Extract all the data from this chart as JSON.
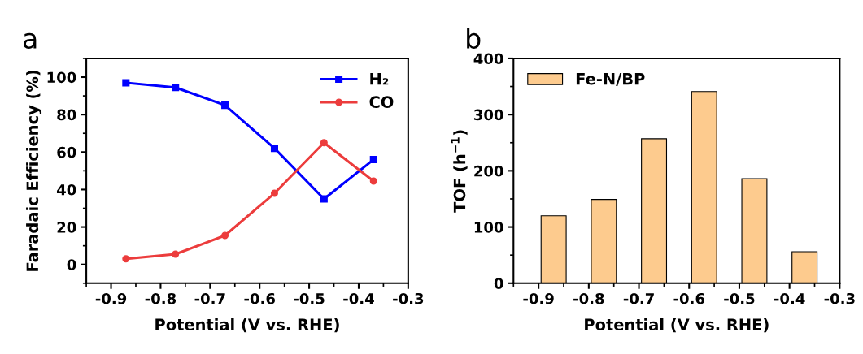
{
  "chart_data": [
    {
      "type": "line",
      "annotations": [
        "a"
      ],
      "xlabel": "Potential (V vs. RHE)",
      "ylabel": "Faradaic Efficiency (%)",
      "x": [
        -0.87,
        -0.77,
        -0.67,
        -0.57,
        -0.47,
        -0.37
      ],
      "series": [
        {
          "name": "H₂",
          "color": "#0000ff",
          "marker": "square",
          "values": [
            97,
            94.5,
            85,
            62,
            35,
            56
          ]
        },
        {
          "name": "CO",
          "color": "#ec3c3c",
          "marker": "circle",
          "values": [
            3,
            5.5,
            15.5,
            38,
            65,
            44.5
          ]
        }
      ],
      "xlim": [
        -0.95,
        -0.3
      ],
      "xticks": [
        -0.9,
        -0.8,
        -0.7,
        -0.6,
        -0.5,
        -0.4,
        -0.3
      ],
      "ylim": [
        -10,
        110
      ],
      "yticks": [
        0,
        20,
        40,
        60,
        80,
        100
      ],
      "legend": "top right",
      "grid": false,
      "line_style": "solid"
    },
    {
      "type": "bar",
      "annotations": [
        "b"
      ],
      "xlabel": "Potential (V vs. RHE)",
      "ylabel": "TOF (h$^{−1}$)",
      "x": [
        -0.87,
        -0.77,
        -0.67,
        -0.57,
        -0.47,
        -0.37
      ],
      "series": [
        {
          "name": "Fe-N/BP",
          "color": "#fdcb8e",
          "values": [
            120,
            149,
            257,
            341,
            186,
            56
          ]
        }
      ],
      "xlim": [
        -0.95,
        -0.3
      ],
      "xticks": [
        -0.9,
        -0.8,
        -0.7,
        -0.6,
        -0.5,
        -0.4,
        -0.3
      ],
      "ylim": [
        0,
        400
      ],
      "yticks": [
        0,
        100,
        200,
        300,
        400
      ],
      "legend": "top left",
      "grid": false
    }
  ]
}
